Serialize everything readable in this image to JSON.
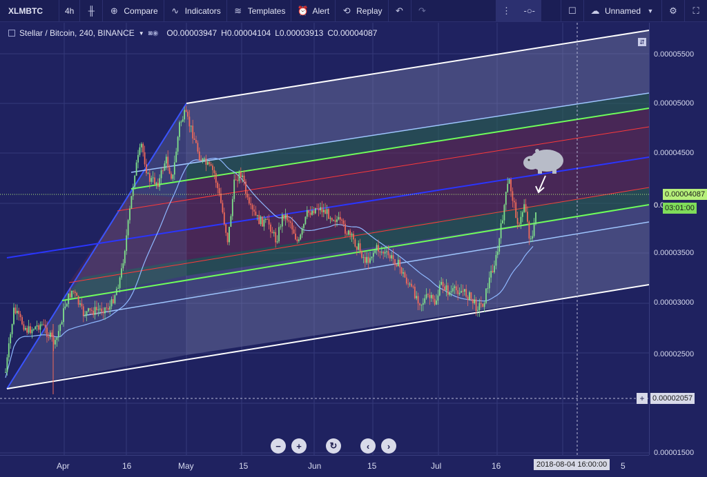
{
  "toolbar": {
    "symbol": "XLMBTC",
    "interval": "4h",
    "compare": "Compare",
    "indicators": "Indicators",
    "templates": "Templates",
    "alert": "Alert",
    "replay": "Replay",
    "layout_name": "Unnamed"
  },
  "legend": {
    "title": "Stellar / Bitcoin, 240, BINANCE",
    "open": "O0.00003947",
    "high": "H0.00004104",
    "low": "L0.00003913",
    "close": "C0.00004087"
  },
  "price_axis": {
    "labels": [
      "0.00005500",
      "0.00005000",
      "0.00004500",
      "0.00003500",
      "0.00003000",
      "0.00002500",
      "0.00001500"
    ],
    "last_price": "0.00004087",
    "countdown": "03:01:00",
    "crosshair_price": "0.00002057",
    "partial_label": "0.0"
  },
  "time_axis": {
    "labels": [
      "Apr",
      "16",
      "May",
      "15",
      "Jun",
      "15",
      "Jul",
      "16"
    ],
    "crosshair_time": "2018-08-04 16:00:00",
    "partial_label": "5"
  },
  "colors": {
    "background": "#1f2260",
    "last_price_badge": "#b6f07a",
    "countdown_badge": "#7fdc5a"
  },
  "icons": [
    "candles-icon",
    "compare-icon",
    "indicators-icon",
    "templates-icon",
    "alert-icon",
    "replay-icon",
    "undo-icon",
    "redo-icon",
    "settings-icon",
    "fullscreen-icon",
    "cloud-icon"
  ],
  "nav": [
    "minus",
    "plus",
    "reset",
    "left",
    "right"
  ]
}
